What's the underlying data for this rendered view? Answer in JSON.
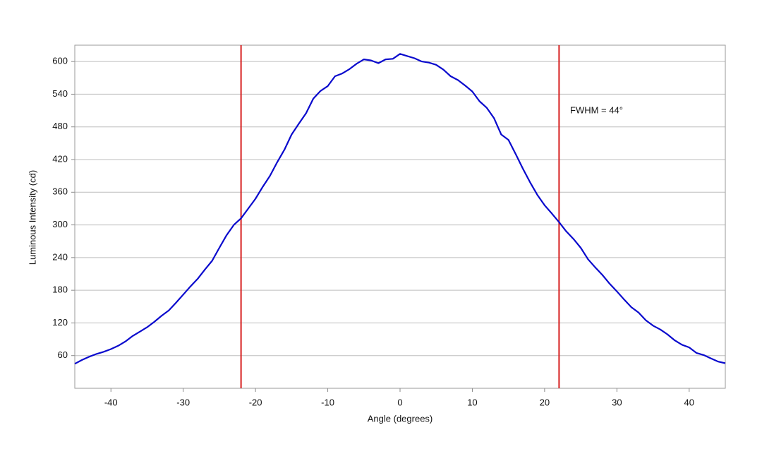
{
  "chart_data": {
    "type": "line",
    "x_label": "Angle (degrees)",
    "y_label": "Luminous Intensity (cd)",
    "xlim": [
      -45,
      45
    ],
    "ylim": [
      0,
      630
    ],
    "xticks": [
      -40,
      -30,
      -20,
      -10,
      0,
      10,
      20,
      30,
      40
    ],
    "yticks": [
      60,
      120,
      180,
      240,
      300,
      360,
      420,
      480,
      540,
      600
    ],
    "grid": true,
    "series": [
      {
        "color": "#0a0acd",
        "x": [
          -45,
          -44,
          -43,
          -42,
          -41,
          -40,
          -39,
          -38,
          -37,
          -36,
          -35,
          -34,
          -33,
          -32,
          -31,
          -30,
          -29,
          -28,
          -27,
          -26,
          -25,
          -24,
          -23,
          -22,
          -21,
          -20,
          -19,
          -18,
          -17,
          -16,
          -15,
          -14,
          -13,
          -12,
          -11,
          -10,
          -9,
          -8,
          -7,
          -6,
          -5,
          -4,
          -3,
          -2,
          -1,
          0,
          1,
          2,
          3,
          4,
          5,
          6,
          7,
          8,
          9,
          10,
          11,
          12,
          13,
          14,
          15,
          16,
          17,
          18,
          19,
          20,
          21,
          22,
          23,
          24,
          25,
          26,
          27,
          28,
          29,
          30,
          31,
          32,
          33,
          34,
          35,
          36,
          37,
          38,
          39,
          40,
          41,
          42,
          43,
          44,
          45
        ],
        "values": [
          45,
          52,
          58,
          63,
          67,
          72,
          78,
          86,
          96,
          104,
          112,
          122,
          133,
          143,
          157,
          172,
          187,
          201,
          218,
          234,
          258,
          281,
          300,
          312,
          330,
          348,
          370,
          390,
          415,
          438,
          466,
          486,
          505,
          532,
          546,
          555,
          573,
          578,
          586,
          596,
          604,
          602,
          597,
          604,
          605,
          614,
          610,
          606,
          600,
          598,
          594,
          585,
          573,
          566,
          556,
          545,
          527,
          515,
          496,
          466,
          456,
          430,
          403,
          378,
          355,
          336,
          321,
          305,
          288,
          274,
          258,
          237,
          222,
          208,
          192,
          178,
          163,
          149,
          139,
          125,
          115,
          108,
          99,
          88,
          80,
          75,
          65,
          61,
          55,
          49,
          46
        ]
      }
    ],
    "vlines": {
      "color": "#d62020",
      "values": [
        -22,
        22
      ]
    },
    "annotations": [
      {
        "text": "FWHM = 44°"
      }
    ]
  }
}
